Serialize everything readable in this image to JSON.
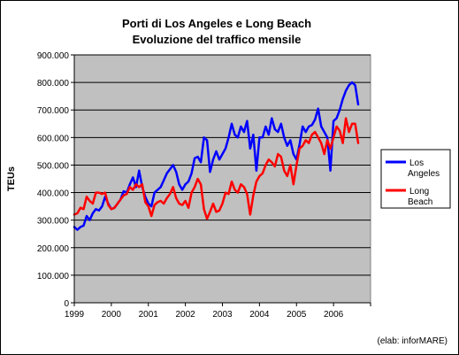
{
  "chart_data": {
    "type": "line",
    "title": "Porti di Los Angeles e Long Beach",
    "subtitle": "Evoluzione del traffico mensile",
    "xlabel": "",
    "ylabel": "TEUs",
    "ylim": [
      0,
      900000
    ],
    "y_ticks": [
      0,
      100000,
      200000,
      300000,
      400000,
      500000,
      600000,
      700000,
      800000,
      900000
    ],
    "y_tick_labels": [
      "0",
      "100.000",
      "200.000",
      "300.000",
      "400.000",
      "500.000",
      "600.000",
      "700.000",
      "800.000",
      "900.000"
    ],
    "x_tick_labels": [
      "1999",
      "2000",
      "2001",
      "2002",
      "2003",
      "2004",
      "2005",
      "2006"
    ],
    "x_range_years": [
      1999,
      2007
    ],
    "grid": "horizontal",
    "legend_position": "right",
    "plot_background": "#c0c0c0",
    "credit": "(elab: inforMARE)",
    "series": [
      {
        "name": "Los Angeles",
        "color": "#0000ff",
        "start": "1999-01",
        "values": [
          275000,
          265000,
          275000,
          280000,
          315000,
          300000,
          325000,
          340000,
          335000,
          350000,
          385000,
          360000,
          340000,
          345000,
          360000,
          375000,
          405000,
          400000,
          430000,
          455000,
          420000,
          480000,
          420000,
          385000,
          360000,
          350000,
          400000,
          410000,
          420000,
          445000,
          470000,
          485000,
          500000,
          475000,
          430000,
          410000,
          430000,
          440000,
          470000,
          525000,
          530000,
          510000,
          600000,
          590000,
          475000,
          520000,
          550000,
          520000,
          540000,
          560000,
          600000,
          650000,
          610000,
          600000,
          640000,
          620000,
          660000,
          560000,
          610000,
          480000,
          600000,
          600000,
          640000,
          610000,
          670000,
          630000,
          620000,
          650000,
          600000,
          570000,
          590000,
          540000,
          520000,
          575000,
          640000,
          620000,
          640000,
          645000,
          665000,
          705000,
          640000,
          620000,
          600000,
          480000,
          660000,
          670000,
          700000,
          740000,
          770000,
          790000,
          800000,
          790000,
          720000
        ]
      },
      {
        "name": "Long Beach",
        "color": "#ff0000",
        "start": "1999-01",
        "values": [
          320000,
          325000,
          345000,
          340000,
          385000,
          370000,
          360000,
          400000,
          400000,
          395000,
          400000,
          355000,
          340000,
          345000,
          360000,
          375000,
          390000,
          395000,
          420000,
          410000,
          430000,
          420000,
          430000,
          365000,
          350000,
          315000,
          355000,
          365000,
          370000,
          360000,
          380000,
          395000,
          420000,
          380000,
          360000,
          355000,
          370000,
          345000,
          400000,
          420000,
          450000,
          430000,
          340000,
          305000,
          330000,
          360000,
          330000,
          335000,
          360000,
          400000,
          395000,
          440000,
          410000,
          400000,
          430000,
          420000,
          395000,
          320000,
          390000,
          440000,
          460000,
          470000,
          500000,
          520000,
          510000,
          495000,
          540000,
          530000,
          480000,
          460000,
          500000,
          430000,
          500000,
          560000,
          570000,
          590000,
          580000,
          610000,
          620000,
          600000,
          580000,
          540000,
          590000,
          560000,
          600000,
          640000,
          625000,
          580000,
          670000,
          620000,
          650000,
          650000,
          580000
        ]
      }
    ]
  }
}
